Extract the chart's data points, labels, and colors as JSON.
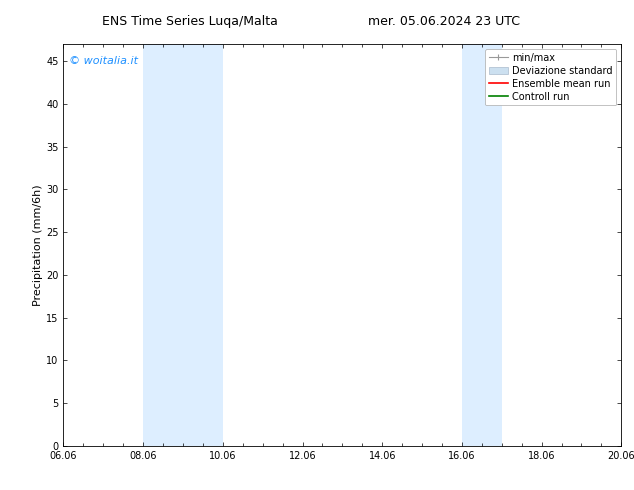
{
  "title_left": "ENS Time Series Luqa/Malta",
  "title_right": "mer. 05.06.2024 23 UTC",
  "ylabel": "Precipitation (mm/6h)",
  "xtick_labels": [
    "06.06",
    "08.06",
    "10.06",
    "12.06",
    "14.06",
    "16.06",
    "18.06",
    "20.06"
  ],
  "xtick_positions": [
    0,
    2,
    4,
    6,
    8,
    10,
    12,
    14
  ],
  "ylim": [
    0,
    47
  ],
  "ytick_positions": [
    0,
    5,
    10,
    15,
    20,
    25,
    30,
    35,
    40,
    45
  ],
  "ytick_labels": [
    "0",
    "5",
    "10",
    "15",
    "20",
    "25",
    "30",
    "35",
    "40",
    "45"
  ],
  "shaded_bands": [
    {
      "x_start": 2,
      "x_end": 4
    },
    {
      "x_start": 10,
      "x_end": 11
    }
  ],
  "shaded_color": "#ddeeff",
  "background_color": "#ffffff",
  "watermark": "© woitalia.it",
  "watermark_color": "#1e90ff",
  "legend_entries": [
    {
      "label": "min/max",
      "color": "#aaaaaa"
    },
    {
      "label": "Deviazione standard",
      "color": "#cce0f0"
    },
    {
      "label": "Ensemble mean run",
      "color": "#ff0000"
    },
    {
      "label": "Controll run",
      "color": "#008000"
    }
  ],
  "title_fontsize": 9,
  "tick_fontsize": 7,
  "ylabel_fontsize": 8,
  "legend_fontsize": 7,
  "watermark_fontsize": 8
}
